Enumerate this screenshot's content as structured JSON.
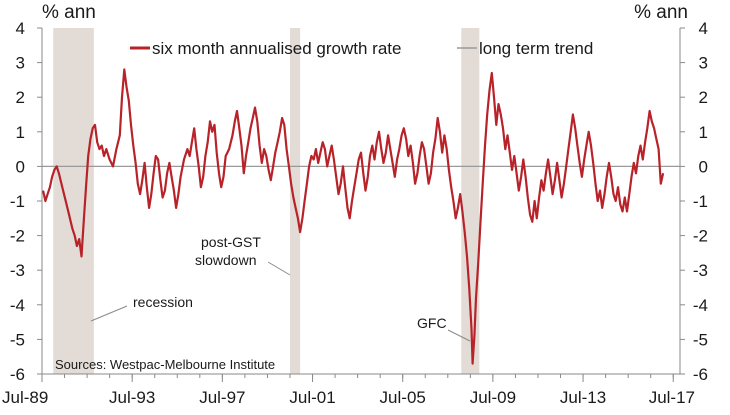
{
  "chart_data": {
    "type": "line",
    "left_unit": "% ann",
    "right_unit": "% ann",
    "ylim": [
      -6,
      4
    ],
    "yticks": [
      4,
      3,
      2,
      1,
      0,
      -1,
      -2,
      -3,
      -4,
      -5,
      -6
    ],
    "xlim": [
      1989.5,
      2017.8
    ],
    "xticks": [
      {
        "label": "Jul-89",
        "x": 1989.5
      },
      {
        "label": "Jul-93",
        "x": 1993.5
      },
      {
        "label": "Jul-97",
        "x": 1997.5
      },
      {
        "label": "Jul-01",
        "x": 2001.5
      },
      {
        "label": "Jul-05",
        "x": 2005.5
      },
      {
        "label": "Jul-09",
        "x": 2009.5
      },
      {
        "label": "Jul-13",
        "x": 2013.5
      },
      {
        "label": "Jul-17",
        "x": 2017.5
      }
    ],
    "colors": {
      "series": "#b8232a",
      "shading": "#e3dbd5",
      "trend": "#9a9a9a",
      "axis": "#8a8a8a"
    },
    "shaded_periods": [
      {
        "start": 1990.0,
        "end": 1991.8
      },
      {
        "start": 2000.5,
        "end": 2000.95
      },
      {
        "start": 2008.1,
        "end": 2008.9
      }
    ],
    "trend_value": 0,
    "series": [
      {
        "name": "six month annualised growth rate",
        "points": [
          [
            1989.55,
            -0.7
          ],
          [
            1989.65,
            -1.0
          ],
          [
            1989.75,
            -0.8
          ],
          [
            1989.85,
            -0.6
          ],
          [
            1989.95,
            -0.3
          ],
          [
            1990.05,
            -0.1
          ],
          [
            1990.15,
            0.0
          ],
          [
            1990.25,
            -0.2
          ],
          [
            1990.4,
            -0.6
          ],
          [
            1990.55,
            -1.0
          ],
          [
            1990.7,
            -1.4
          ],
          [
            1990.85,
            -1.8
          ],
          [
            1990.95,
            -2.0
          ],
          [
            1991.05,
            -2.3
          ],
          [
            1991.15,
            -2.1
          ],
          [
            1991.25,
            -2.6
          ],
          [
            1991.35,
            -1.6
          ],
          [
            1991.45,
            -0.6
          ],
          [
            1991.55,
            0.3
          ],
          [
            1991.65,
            0.8
          ],
          [
            1991.75,
            1.1
          ],
          [
            1991.85,
            1.2
          ],
          [
            1991.95,
            0.7
          ],
          [
            1992.05,
            0.5
          ],
          [
            1992.15,
            0.6
          ],
          [
            1992.25,
            0.3
          ],
          [
            1992.35,
            0.5
          ],
          [
            1992.5,
            0.2
          ],
          [
            1992.65,
            0.0
          ],
          [
            1992.8,
            0.5
          ],
          [
            1992.95,
            0.9
          ],
          [
            1993.05,
            2.0
          ],
          [
            1993.15,
            2.8
          ],
          [
            1993.25,
            2.3
          ],
          [
            1993.35,
            1.9
          ],
          [
            1993.45,
            1.2
          ],
          [
            1993.55,
            0.6
          ],
          [
            1993.65,
            0.1
          ],
          [
            1993.75,
            -0.5
          ],
          [
            1993.85,
            -0.8
          ],
          [
            1993.95,
            -0.4
          ],
          [
            1994.05,
            0.1
          ],
          [
            1994.15,
            -0.6
          ],
          [
            1994.25,
            -1.2
          ],
          [
            1994.35,
            -0.8
          ],
          [
            1994.45,
            -0.2
          ],
          [
            1994.55,
            0.3
          ],
          [
            1994.65,
            0.2
          ],
          [
            1994.75,
            -0.4
          ],
          [
            1994.85,
            -0.9
          ],
          [
            1994.95,
            -0.7
          ],
          [
            1995.05,
            -0.2
          ],
          [
            1995.15,
            0.1
          ],
          [
            1995.25,
            -0.3
          ],
          [
            1995.35,
            -0.7
          ],
          [
            1995.45,
            -1.2
          ],
          [
            1995.55,
            -0.8
          ],
          [
            1995.65,
            -0.3
          ],
          [
            1995.8,
            0.2
          ],
          [
            1995.95,
            0.5
          ],
          [
            1996.05,
            0.3
          ],
          [
            1996.15,
            0.7
          ],
          [
            1996.25,
            1.1
          ],
          [
            1996.35,
            0.5
          ],
          [
            1996.45,
            0.0
          ],
          [
            1996.55,
            -0.6
          ],
          [
            1996.65,
            -0.3
          ],
          [
            1996.75,
            0.3
          ],
          [
            1996.85,
            0.7
          ],
          [
            1996.95,
            1.3
          ],
          [
            1997.05,
            1.0
          ],
          [
            1997.15,
            1.2
          ],
          [
            1997.25,
            0.4
          ],
          [
            1997.35,
            -0.2
          ],
          [
            1997.45,
            -0.6
          ],
          [
            1997.55,
            -0.3
          ],
          [
            1997.65,
            0.3
          ],
          [
            1997.8,
            0.5
          ],
          [
            1997.95,
            0.9
          ],
          [
            1998.05,
            1.3
          ],
          [
            1998.15,
            1.6
          ],
          [
            1998.25,
            1.1
          ],
          [
            1998.35,
            0.6
          ],
          [
            1998.45,
            -0.2
          ],
          [
            1998.55,
            0.3
          ],
          [
            1998.65,
            0.7
          ],
          [
            1998.75,
            1.1
          ],
          [
            1998.85,
            1.4
          ],
          [
            1998.95,
            1.7
          ],
          [
            1999.05,
            1.3
          ],
          [
            1999.15,
            0.6
          ],
          [
            1999.25,
            0.1
          ],
          [
            1999.35,
            0.5
          ],
          [
            1999.45,
            0.3
          ],
          [
            1999.55,
            -0.1
          ],
          [
            1999.65,
            -0.4
          ],
          [
            1999.75,
            0.0
          ],
          [
            1999.85,
            0.4
          ],
          [
            1999.95,
            0.7
          ],
          [
            2000.05,
            1.0
          ],
          [
            2000.15,
            1.4
          ],
          [
            2000.25,
            1.2
          ],
          [
            2000.35,
            0.5
          ],
          [
            2000.45,
            0.0
          ],
          [
            2000.55,
            -0.5
          ],
          [
            2000.65,
            -0.9
          ],
          [
            2000.75,
            -1.2
          ],
          [
            2000.85,
            -1.5
          ],
          [
            2000.95,
            -1.9
          ],
          [
            2001.05,
            -1.5
          ],
          [
            2001.15,
            -1.0
          ],
          [
            2001.25,
            -0.5
          ],
          [
            2001.35,
            0.0
          ],
          [
            2001.45,
            0.3
          ],
          [
            2001.55,
            0.2
          ],
          [
            2001.65,
            0.5
          ],
          [
            2001.75,
            0.1
          ],
          [
            2001.85,
            0.4
          ],
          [
            2001.95,
            0.7
          ],
          [
            2002.05,
            0.5
          ],
          [
            2002.15,
            0.0
          ],
          [
            2002.25,
            0.3
          ],
          [
            2002.35,
            0.6
          ],
          [
            2002.45,
            0.2
          ],
          [
            2002.55,
            -0.3
          ],
          [
            2002.65,
            -0.8
          ],
          [
            2002.75,
            -0.5
          ],
          [
            2002.85,
            0.0
          ],
          [
            2002.95,
            -0.6
          ],
          [
            2003.05,
            -1.2
          ],
          [
            2003.15,
            -1.5
          ],
          [
            2003.25,
            -1.0
          ],
          [
            2003.35,
            -0.6
          ],
          [
            2003.45,
            -0.2
          ],
          [
            2003.55,
            0.2
          ],
          [
            2003.65,
            0.4
          ],
          [
            2003.75,
            -0.2
          ],
          [
            2003.85,
            -0.7
          ],
          [
            2003.95,
            -0.3
          ],
          [
            2004.05,
            0.3
          ],
          [
            2004.15,
            0.6
          ],
          [
            2004.25,
            0.2
          ],
          [
            2004.35,
            0.7
          ],
          [
            2004.45,
            1.0
          ],
          [
            2004.55,
            0.5
          ],
          [
            2004.65,
            0.1
          ],
          [
            2004.75,
            0.4
          ],
          [
            2004.85,
            0.9
          ],
          [
            2004.95,
            0.5
          ],
          [
            2005.05,
            0.1
          ],
          [
            2005.15,
            -0.3
          ],
          [
            2005.25,
            0.2
          ],
          [
            2005.35,
            0.5
          ],
          [
            2005.45,
            0.9
          ],
          [
            2005.55,
            1.1
          ],
          [
            2005.65,
            0.8
          ],
          [
            2005.75,
            0.3
          ],
          [
            2005.85,
            0.6
          ],
          [
            2005.95,
            0.1
          ],
          [
            2006.05,
            -0.5
          ],
          [
            2006.15,
            -0.2
          ],
          [
            2006.25,
            0.3
          ],
          [
            2006.35,
            0.7
          ],
          [
            2006.45,
            0.5
          ],
          [
            2006.55,
            0.0
          ],
          [
            2006.65,
            -0.5
          ],
          [
            2006.75,
            -0.2
          ],
          [
            2006.85,
            0.4
          ],
          [
            2006.95,
            0.8
          ],
          [
            2007.05,
            1.4
          ],
          [
            2007.15,
            1.0
          ],
          [
            2007.25,
            0.4
          ],
          [
            2007.35,
            0.9
          ],
          [
            2007.45,
            0.5
          ],
          [
            2007.55,
            -0.1
          ],
          [
            2007.65,
            -0.6
          ],
          [
            2007.75,
            -1.0
          ],
          [
            2007.85,
            -1.5
          ],
          [
            2007.95,
            -1.2
          ],
          [
            2008.05,
            -0.8
          ],
          [
            2008.15,
            -1.3
          ],
          [
            2008.25,
            -1.9
          ],
          [
            2008.35,
            -2.6
          ],
          [
            2008.45,
            -3.5
          ],
          [
            2008.55,
            -4.7
          ],
          [
            2008.6,
            -5.7
          ],
          [
            2008.68,
            -4.9
          ],
          [
            2008.75,
            -3.8
          ],
          [
            2008.85,
            -2.8
          ],
          [
            2008.95,
            -1.6
          ],
          [
            2009.05,
            -0.5
          ],
          [
            2009.15,
            0.6
          ],
          [
            2009.25,
            1.5
          ],
          [
            2009.35,
            2.2
          ],
          [
            2009.45,
            2.7
          ],
          [
            2009.55,
            2.0
          ],
          [
            2009.65,
            1.2
          ],
          [
            2009.75,
            1.8
          ],
          [
            2009.85,
            1.5
          ],
          [
            2009.95,
            1.1
          ],
          [
            2010.05,
            0.5
          ],
          [
            2010.15,
            0.9
          ],
          [
            2010.25,
            0.4
          ],
          [
            2010.35,
            -0.1
          ],
          [
            2010.45,
            0.3
          ],
          [
            2010.55,
            -0.2
          ],
          [
            2010.65,
            -0.7
          ],
          [
            2010.75,
            -0.3
          ],
          [
            2010.85,
            0.2
          ],
          [
            2010.95,
            -0.3
          ],
          [
            2011.05,
            -0.9
          ],
          [
            2011.15,
            -1.4
          ],
          [
            2011.25,
            -1.6
          ],
          [
            2011.35,
            -1.0
          ],
          [
            2011.45,
            -1.5
          ],
          [
            2011.55,
            -0.9
          ],
          [
            2011.65,
            -0.4
          ],
          [
            2011.75,
            -0.7
          ],
          [
            2011.85,
            -0.2
          ],
          [
            2011.95,
            0.2
          ],
          [
            2012.05,
            -0.3
          ],
          [
            2012.15,
            -0.8
          ],
          [
            2012.25,
            -0.4
          ],
          [
            2012.35,
            0.1
          ],
          [
            2012.45,
            -0.4
          ],
          [
            2012.55,
            -0.9
          ],
          [
            2012.65,
            -0.5
          ],
          [
            2012.75,
            0.0
          ],
          [
            2012.85,
            0.5
          ],
          [
            2012.95,
            1.0
          ],
          [
            2013.05,
            1.5
          ],
          [
            2013.15,
            1.1
          ],
          [
            2013.25,
            0.6
          ],
          [
            2013.35,
            0.1
          ],
          [
            2013.45,
            -0.3
          ],
          [
            2013.55,
            0.2
          ],
          [
            2013.65,
            0.6
          ],
          [
            2013.75,
            1.0
          ],
          [
            2013.85,
            0.6
          ],
          [
            2013.95,
            0.1
          ],
          [
            2014.05,
            -0.5
          ],
          [
            2014.15,
            -1.0
          ],
          [
            2014.25,
            -0.7
          ],
          [
            2014.35,
            -1.2
          ],
          [
            2014.45,
            -0.8
          ],
          [
            2014.55,
            -0.3
          ],
          [
            2014.65,
            0.1
          ],
          [
            2014.75,
            -0.3
          ],
          [
            2014.85,
            -0.8
          ],
          [
            2014.95,
            -1.0
          ],
          [
            2015.05,
            -0.6
          ],
          [
            2015.15,
            -1.1
          ],
          [
            2015.25,
            -1.3
          ],
          [
            2015.35,
            -0.9
          ],
          [
            2015.45,
            -1.3
          ],
          [
            2015.55,
            -0.8
          ],
          [
            2015.65,
            -0.3
          ],
          [
            2015.75,
            0.1
          ],
          [
            2015.85,
            -0.2
          ],
          [
            2015.95,
            0.3
          ],
          [
            2016.05,
            0.6
          ],
          [
            2016.15,
            0.2
          ],
          [
            2016.25,
            0.7
          ],
          [
            2016.35,
            1.1
          ],
          [
            2016.45,
            1.6
          ],
          [
            2016.55,
            1.3
          ],
          [
            2016.65,
            1.1
          ],
          [
            2016.75,
            0.8
          ],
          [
            2016.85,
            0.5
          ],
          [
            2016.95,
            -0.5
          ],
          [
            2017.05,
            -0.2
          ]
        ]
      },
      {
        "name": "long term trend"
      }
    ],
    "annotations": [
      {
        "text": "post-GST",
        "line2": "slowdown"
      },
      {
        "text": "recession"
      },
      {
        "text": "GFC"
      }
    ],
    "source": "Sources: Westpac-Melbourne Institute"
  }
}
